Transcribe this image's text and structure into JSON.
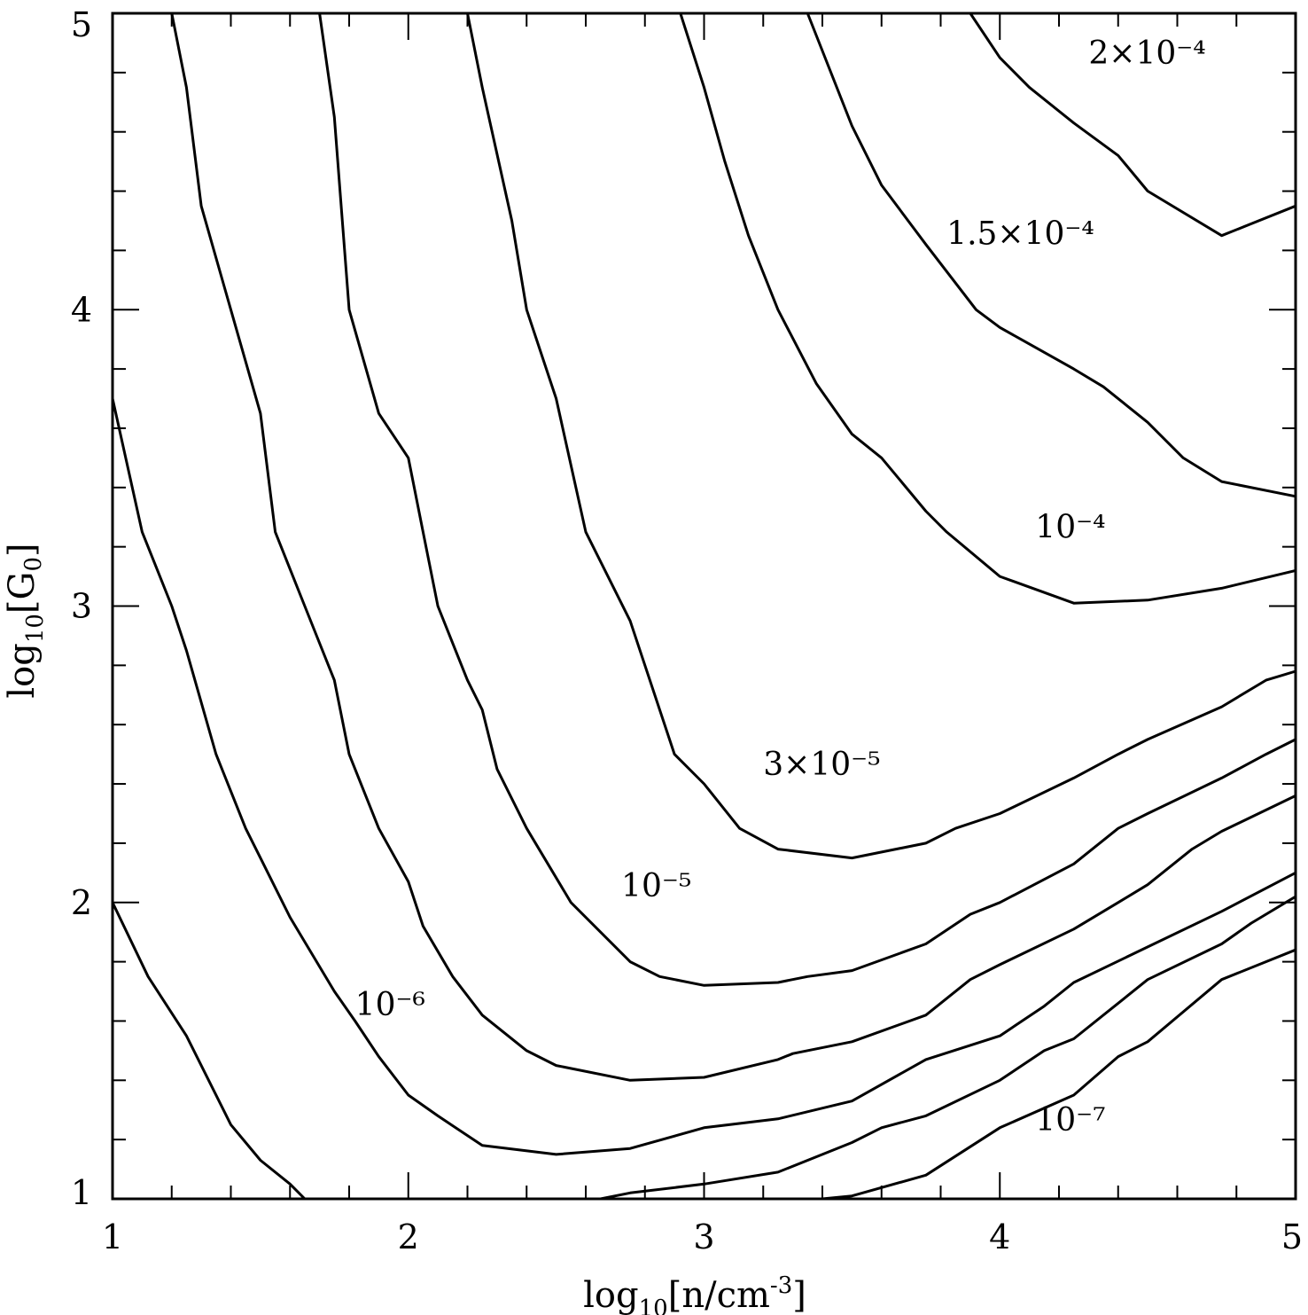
{
  "chart_data": {
    "type": "line",
    "xlabel": "log10[n/cm-3]",
    "ylabel": "log10[G0]",
    "xlim": [
      1,
      5
    ],
    "ylim": [
      1,
      5
    ],
    "x_ticks": [
      "1",
      "2",
      "3",
      "4",
      "5"
    ],
    "y_ticks": [
      "1",
      "2",
      "3",
      "4",
      "5"
    ],
    "grid": false,
    "legend": "none",
    "series": [
      {
        "label": "",
        "points": [
          [
            1.0,
            2.0
          ],
          [
            1.12,
            1.75
          ],
          [
            1.25,
            1.55
          ],
          [
            1.4,
            1.25
          ],
          [
            1.5,
            1.13
          ],
          [
            1.6,
            1.05
          ],
          [
            1.65,
            1.0
          ]
        ]
      },
      {
        "label": "",
        "points": [
          [
            1.0,
            3.7
          ],
          [
            1.1,
            3.25
          ],
          [
            1.2,
            3.0
          ],
          [
            1.25,
            2.85
          ],
          [
            1.35,
            2.5
          ],
          [
            1.45,
            2.25
          ],
          [
            1.5,
            2.15
          ],
          [
            1.6,
            1.95
          ],
          [
            1.75,
            1.7
          ],
          [
            1.82,
            1.6
          ],
          [
            1.9,
            1.48
          ],
          [
            2.0,
            1.35
          ],
          [
            2.1,
            1.28
          ],
          [
            2.25,
            1.18
          ],
          [
            2.5,
            1.15
          ],
          [
            2.75,
            1.17
          ],
          [
            3.0,
            1.24
          ],
          [
            3.25,
            1.27
          ],
          [
            3.5,
            1.33
          ],
          [
            3.75,
            1.47
          ],
          [
            4.0,
            1.55
          ],
          [
            4.15,
            1.65
          ],
          [
            4.25,
            1.73
          ],
          [
            4.5,
            1.85
          ],
          [
            4.75,
            1.97
          ],
          [
            5.0,
            2.1
          ]
        ]
      },
      {
        "label": "10⁻⁶",
        "points": [
          [
            1.2,
            5.0
          ],
          [
            1.25,
            4.75
          ],
          [
            1.3,
            4.35
          ],
          [
            1.4,
            4.0
          ],
          [
            1.5,
            3.65
          ],
          [
            1.55,
            3.25
          ],
          [
            1.65,
            3.0
          ],
          [
            1.75,
            2.75
          ],
          [
            1.8,
            2.5
          ],
          [
            1.9,
            2.25
          ],
          [
            2.0,
            2.07
          ],
          [
            2.05,
            1.92
          ],
          [
            2.15,
            1.75
          ],
          [
            2.25,
            1.62
          ],
          [
            2.4,
            1.5
          ],
          [
            2.5,
            1.45
          ],
          [
            2.75,
            1.4
          ],
          [
            3.0,
            1.41
          ],
          [
            3.25,
            1.47
          ],
          [
            3.3,
            1.49
          ],
          [
            3.5,
            1.53
          ],
          [
            3.75,
            1.62
          ],
          [
            3.9,
            1.74
          ],
          [
            4.0,
            1.79
          ],
          [
            4.25,
            1.91
          ],
          [
            4.4,
            2.0
          ],
          [
            4.5,
            2.06
          ],
          [
            4.65,
            2.18
          ],
          [
            4.75,
            2.24
          ],
          [
            5.0,
            2.36
          ]
        ]
      },
      {
        "label": "10⁻⁵",
        "points": [
          [
            1.7,
            5.0
          ],
          [
            1.75,
            4.65
          ],
          [
            1.8,
            4.0
          ],
          [
            1.9,
            3.65
          ],
          [
            2.0,
            3.5
          ],
          [
            2.05,
            3.25
          ],
          [
            2.1,
            3.0
          ],
          [
            2.2,
            2.75
          ],
          [
            2.25,
            2.65
          ],
          [
            2.3,
            2.45
          ],
          [
            2.4,
            2.25
          ],
          [
            2.55,
            2.0
          ],
          [
            2.75,
            1.8
          ],
          [
            2.85,
            1.75
          ],
          [
            3.0,
            1.72
          ],
          [
            3.25,
            1.73
          ],
          [
            3.35,
            1.75
          ],
          [
            3.5,
            1.77
          ],
          [
            3.75,
            1.86
          ],
          [
            3.9,
            1.96
          ],
          [
            4.0,
            2.0
          ],
          [
            4.25,
            2.13
          ],
          [
            4.4,
            2.25
          ],
          [
            4.5,
            2.3
          ],
          [
            4.75,
            2.42
          ],
          [
            4.9,
            2.5
          ],
          [
            5.0,
            2.55
          ]
        ]
      },
      {
        "label": "3×10⁻⁵",
        "points": [
          [
            2.2,
            5.0
          ],
          [
            2.25,
            4.75
          ],
          [
            2.35,
            4.3
          ],
          [
            2.4,
            4.0
          ],
          [
            2.5,
            3.7
          ],
          [
            2.6,
            3.25
          ],
          [
            2.75,
            2.95
          ],
          [
            2.9,
            2.5
          ],
          [
            3.0,
            2.4
          ],
          [
            3.12,
            2.25
          ],
          [
            3.25,
            2.18
          ],
          [
            3.5,
            2.15
          ],
          [
            3.75,
            2.2
          ],
          [
            3.85,
            2.25
          ],
          [
            4.0,
            2.3
          ],
          [
            4.25,
            2.42
          ],
          [
            4.4,
            2.5
          ],
          [
            4.5,
            2.55
          ],
          [
            4.75,
            2.66
          ],
          [
            4.9,
            2.75
          ],
          [
            5.0,
            2.78
          ]
        ]
      },
      {
        "label": "10⁻⁴",
        "points": [
          [
            2.92,
            5.0
          ],
          [
            3.0,
            4.75
          ],
          [
            3.07,
            4.5
          ],
          [
            3.15,
            4.25
          ],
          [
            3.25,
            4.0
          ],
          [
            3.38,
            3.75
          ],
          [
            3.5,
            3.58
          ],
          [
            3.6,
            3.5
          ],
          [
            3.75,
            3.32
          ],
          [
            3.82,
            3.25
          ],
          [
            4.0,
            3.1
          ],
          [
            4.25,
            3.01
          ],
          [
            4.5,
            3.02
          ],
          [
            4.75,
            3.06
          ],
          [
            5.0,
            3.12
          ]
        ]
      },
      {
        "label": "1.5×10⁻⁴",
        "points": [
          [
            3.35,
            5.0
          ],
          [
            3.5,
            4.62
          ],
          [
            3.6,
            4.42
          ],
          [
            3.75,
            4.22
          ],
          [
            3.92,
            4.0
          ],
          [
            4.0,
            3.94
          ],
          [
            4.25,
            3.8
          ],
          [
            4.35,
            3.74
          ],
          [
            4.5,
            3.62
          ],
          [
            4.62,
            3.5
          ],
          [
            4.75,
            3.42
          ],
          [
            5.0,
            3.37
          ]
        ]
      },
      {
        "label": "2×10⁻⁴",
        "points": [
          [
            3.9,
            5.0
          ],
          [
            4.0,
            4.85
          ],
          [
            4.1,
            4.75
          ],
          [
            4.25,
            4.63
          ],
          [
            4.4,
            4.52
          ],
          [
            4.5,
            4.4
          ],
          [
            4.75,
            4.25
          ],
          [
            5.0,
            4.35
          ]
        ]
      },
      {
        "label": "10⁻⁷",
        "points": [
          [
            2.65,
            1.0
          ],
          [
            2.75,
            1.02
          ],
          [
            3.0,
            1.05
          ],
          [
            3.25,
            1.09
          ],
          [
            3.5,
            1.19
          ],
          [
            3.6,
            1.24
          ],
          [
            3.75,
            1.28
          ],
          [
            4.0,
            1.4
          ],
          [
            4.15,
            1.5
          ],
          [
            4.25,
            1.54
          ],
          [
            4.4,
            1.66
          ],
          [
            4.5,
            1.74
          ],
          [
            4.75,
            1.86
          ],
          [
            4.85,
            1.93
          ],
          [
            5.0,
            2.02
          ]
        ]
      },
      {
        "label": "",
        "points": [
          [
            3.4,
            1.0
          ],
          [
            3.5,
            1.01
          ],
          [
            3.75,
            1.08
          ],
          [
            4.0,
            1.24
          ],
          [
            4.25,
            1.35
          ],
          [
            4.4,
            1.48
          ],
          [
            4.5,
            1.53
          ],
          [
            4.75,
            1.74
          ],
          [
            5.0,
            1.84
          ]
        ]
      }
    ],
    "annotations": [
      {
        "text": "2×10⁻⁴",
        "x": 4.3,
        "y": 4.83
      },
      {
        "text": "1.5×10⁻⁴",
        "x": 3.82,
        "y": 4.22
      },
      {
        "text": "10⁻⁴",
        "x": 4.12,
        "y": 3.23
      },
      {
        "text": "3×10⁻⁵",
        "x": 3.2,
        "y": 2.43
      },
      {
        "text": "10⁻⁵",
        "x": 2.72,
        "y": 2.02
      },
      {
        "text": "10⁻⁶",
        "x": 1.82,
        "y": 1.62
      },
      {
        "text": "10⁻⁷",
        "x": 4.12,
        "y": 1.23
      }
    ]
  }
}
